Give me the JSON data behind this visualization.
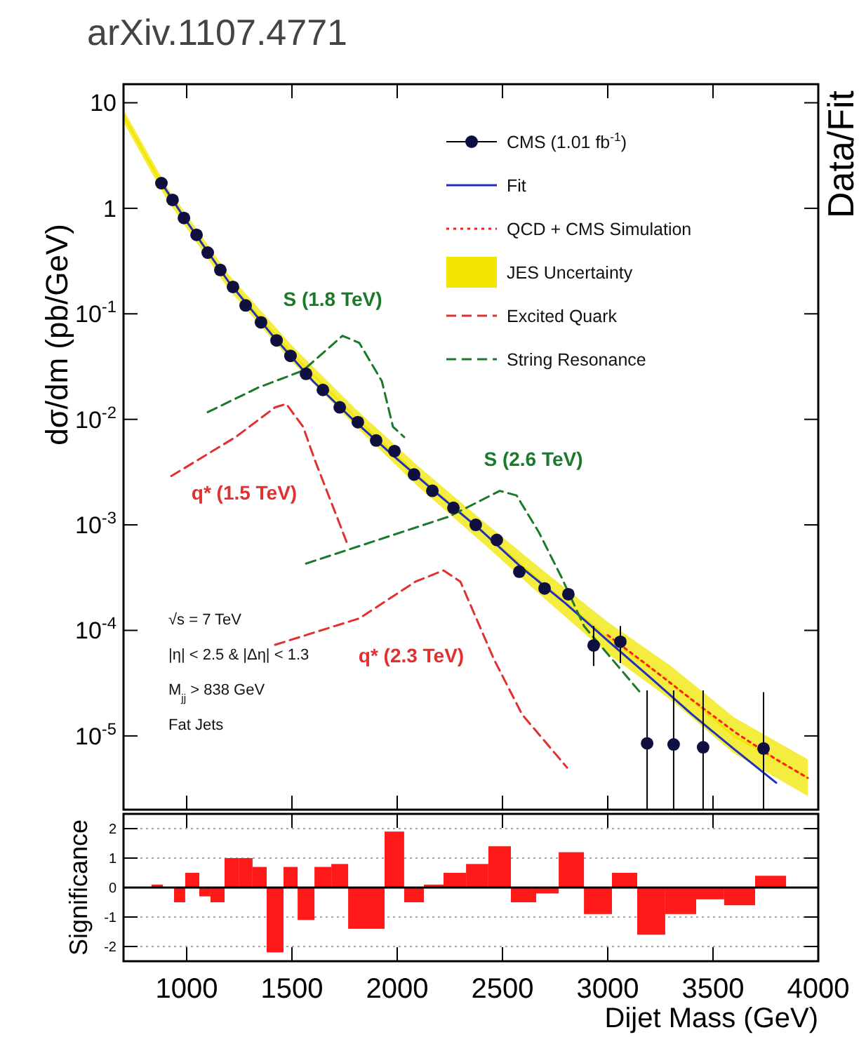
{
  "chart_data": [
    {
      "type": "scatter",
      "title": "arXiv.1107.4771",
      "ylabel": "dσ/dm (pb/GeV)",
      "y2label": "Data/Fit",
      "xlim": [
        700,
        4000
      ],
      "xticks": [
        1000,
        1500,
        2000,
        2500,
        3000,
        3500
      ],
      "ylim": [
        2e-06,
        15
      ],
      "yticks": [
        {
          "value": 10,
          "label": "10"
        },
        {
          "value": 1,
          "label": "1"
        },
        {
          "value": 0.1,
          "label": "10$^{-1}$"
        },
        {
          "value": 0.01,
          "label": "10$^{-2}$"
        },
        {
          "value": 0.001,
          "label": "10$^{-3}$"
        },
        {
          "value": 0.0001,
          "label": "10$^{-4}$"
        },
        {
          "value": 1e-05,
          "label": "10$^{-5}$"
        }
      ],
      "log": true,
      "tick_labels": "y",
      "legend": "top right",
      "annotations": [
        "S (1.8 TeV)",
        "S (2.6 TeV)",
        "q* (1.5 TeV)",
        "q* (2.3 TeV)",
        "√s = 7 TeV",
        "|η| < 2.5 & |Δη| < 1.3",
        "M$_{jj}$ > 838 GeV",
        "Fat Jets"
      ],
      "series": [
        {
          "name": "CMS (1.01 fb$^{-1}$)",
          "type": "scatter",
          "color": "#101040",
          "marker": "circle",
          "x": [
            880,
            933,
            987,
            1047,
            1100,
            1160,
            1220,
            1280,
            1353,
            1427,
            1493,
            1567,
            1647,
            1727,
            1813,
            1900,
            1987,
            2080,
            2167,
            2267,
            2373,
            2473,
            2580,
            2700,
            2813,
            2933,
            3060,
            3187,
            3313,
            3453,
            3740
          ],
          "values": [
            1.73,
            1.2,
            0.81,
            0.56,
            0.38,
            0.26,
            0.18,
            0.12,
            0.083,
            0.056,
            0.04,
            0.027,
            0.019,
            0.013,
            0.0094,
            0.0063,
            0.005,
            0.003,
            0.0021,
            0.00145,
            0.001,
            0.00072,
            0.00036,
            0.00025,
            0.00022,
            7.2e-05,
            7.8e-05,
            8.5e-06,
            8.3e-06,
            7.8e-06,
            7.6e-06
          ],
          "errors": [
            null,
            null,
            null,
            null,
            null,
            null,
            null,
            null,
            null,
            null,
            null,
            null,
            null,
            null,
            null,
            null,
            null,
            null,
            null,
            null,
            null,
            null,
            null,
            null,
            null,
            [
              4.6e-05,
              0.00011
            ],
            [
              4.9e-05,
              0.00011
            ],
            [
              2e-06,
              2.7e-05
            ],
            [
              2e-06,
              2.7e-05
            ],
            [
              2e-06,
              2.7e-05
            ],
            [
              2e-06,
              2.6e-05
            ]
          ]
        },
        {
          "name": "Fit",
          "type": "line",
          "color": "#1f2fbf",
          "line_style": "solid",
          "x": [
            880,
            1000,
            1200,
            1400,
            1600,
            1800,
            2000,
            2200,
            2400,
            2600,
            2800,
            3000,
            3200,
            3400,
            3600,
            3800
          ],
          "values": [
            1.75,
            0.75,
            0.2,
            0.065,
            0.023,
            0.0095,
            0.0042,
            0.0019,
            0.00088,
            0.00038,
            0.00018,
            8e-05,
            3.6e-05,
            1.6e-05,
            7.5e-06,
            3.6e-06
          ]
        },
        {
          "name": "QCD + CMS Simulation",
          "type": "line",
          "color": "#ff1a1a",
          "line_style": "dotted",
          "x": [
            3000,
            3200,
            3400,
            3600,
            3800,
            3950
          ],
          "values": [
            9e-05,
            4.5e-05,
            2.2e-05,
            1.1e-05,
            6e-06,
            4e-06
          ]
        },
        {
          "name": "JES Uncertainty",
          "type": "line",
          "line_style": "solid",
          "color": "#f2e600",
          "x": [
            700,
            900,
            1200,
            1500,
            1800,
            2100,
            2400,
            2700,
            3000,
            3300,
            3600,
            3950
          ],
          "values": [
            7.5,
            1.45,
            0.2,
            0.042,
            0.0105,
            0.0029,
            0.00088,
            0.00027,
            8.5e-05,
            3.2e-05,
            1e-05,
            4e-06
          ],
          "lower": [
            6.5,
            1.26,
            0.17,
            0.035,
            0.0087,
            0.0023,
            0.00069,
            0.0002,
            6e-05,
            2.2e-05,
            6.8e-06,
            2.7e-06
          ],
          "upper": [
            8.6,
            1.67,
            0.235,
            0.05,
            0.0127,
            0.0036,
            0.00112,
            0.00036,
            0.00012,
            4.6e-05,
            1.5e-05,
            6e-06
          ]
        },
        {
          "name": "Excited Quark",
          "type": "line",
          "color": "#e03030",
          "line_style": "dashed",
          "x": [
            927,
            1233,
            1420,
            1473,
            1553,
            1607,
            1713,
            1767
          ],
          "values": [
            0.0029,
            0.0068,
            0.013,
            0.014,
            0.0085,
            0.0042,
            0.0012,
            0.00063
          ]
        },
        {
          "type": "line",
          "color": "#e03030",
          "line_style": "dashed",
          "x": [
            1420,
            1820,
            2087,
            2220,
            2300,
            2460,
            2593,
            2807
          ],
          "values": [
            7.3e-05,
            0.00013,
            0.00029,
            0.00037,
            0.00029,
            5.3e-05,
            1.6e-05,
            5e-06
          ]
        },
        {
          "name": "String Resonance",
          "type": "line",
          "color": "#1a7a2a",
          "line_style": "dashed",
          "x": [
            1100,
            1340,
            1553,
            1740,
            1820,
            1927,
            1980,
            2033
          ],
          "values": [
            0.0117,
            0.02,
            0.029,
            0.062,
            0.053,
            0.023,
            0.0085,
            0.0068
          ]
        },
        {
          "type": "line",
          "color": "#1a7a2a",
          "line_style": "dashed",
          "x": [
            1567,
            2247,
            2487,
            2567,
            2673,
            2780,
            2887,
            3153
          ],
          "values": [
            0.00043,
            0.0012,
            0.0021,
            0.0019,
            0.00085,
            0.00032,
            0.00011,
            2.6e-05
          ]
        }
      ]
    },
    {
      "type": "histogram",
      "xlabel": "Dijet Mass (GeV)",
      "ylabel": "Significance",
      "color": "#ff1a1a",
      "bins": [
        833,
        887,
        940,
        993,
        1060,
        1113,
        1180,
        1247,
        1313,
        1380,
        1460,
        1527,
        1607,
        1687,
        1767,
        1860,
        1940,
        2033,
        2127,
        2220,
        2327,
        2433,
        2540,
        2660,
        2767,
        2887,
        3020,
        3140,
        3273,
        3420,
        3553,
        3700,
        3847
      ],
      "values": [
        0.1,
        0,
        -0.5,
        0.5,
        -0.3,
        -0.5,
        1.0,
        1.0,
        0.7,
        -2.2,
        0.7,
        -1.1,
        0.7,
        0.8,
        -1.4,
        -1.4,
        1.9,
        -0.5,
        0.1,
        0.5,
        0.8,
        1.4,
        -0.5,
        -0.2,
        1.2,
        -0.9,
        0.5,
        -1.6,
        -0.9,
        -0.4,
        -0.6,
        0.4
      ],
      "xlim": [
        700,
        4000
      ],
      "xticks": [
        1000,
        1500,
        2000,
        2500,
        3000,
        3500,
        {
          "value": 4000,
          "label": "4000"
        }
      ],
      "ylim": [
        -2.5,
        2.5
      ],
      "yticks": [
        -2,
        -1,
        0,
        1,
        2
      ],
      "grid": "y",
      "ref_lines": [
        {
          "axis": "y",
          "value": 0,
          "color": "#000000"
        }
      ]
    }
  ]
}
